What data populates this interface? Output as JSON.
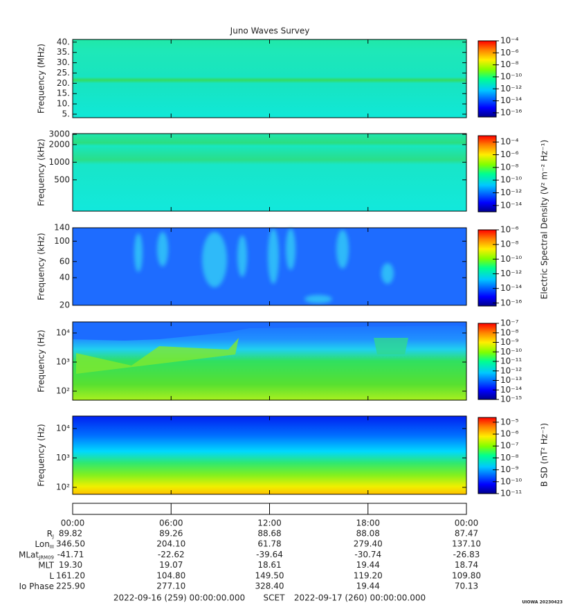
{
  "chart_data": {
    "type": "spectrogram",
    "title": "Juno Waves Survey",
    "colorbar_log": true,
    "xlim": [
      0,
      24
    ],
    "xticks": [
      {
        "value": 0,
        "label": "00:00"
      },
      {
        "value": 6,
        "label": "06:00"
      },
      {
        "value": 12,
        "label": "12:00"
      },
      {
        "value": 18,
        "label": "18:00"
      },
      {
        "value": 24,
        "label": "00:00"
      }
    ],
    "panels": [
      {
        "ylabel": "Frequency (MHz)",
        "log": false,
        "ylim": [
          3.3,
          41.3
        ],
        "yticks": [
          {
            "value": 5,
            "label": "5."
          },
          {
            "value": 10,
            "label": "10."
          },
          {
            "value": 15,
            "label": "15."
          },
          {
            "value": 20,
            "label": "20."
          },
          {
            "value": 25,
            "label": "25."
          },
          {
            "value": 30,
            "label": "30."
          },
          {
            "value": 35,
            "label": "35."
          },
          {
            "value": 40,
            "label": "40."
          }
        ],
        "clim": [
          2e-17,
          0.0001
        ],
        "cticks": [
          {
            "value": 0.0001,
            "label": "10⁻⁴"
          },
          {
            "value": 1e-06,
            "label": "10⁻⁶"
          },
          {
            "value": 1e-08,
            "label": "10⁻⁸"
          },
          {
            "value": 1e-10,
            "label": "10⁻¹⁰"
          },
          {
            "value": 1e-12,
            "label": "10⁻¹²"
          },
          {
            "value": 1e-14,
            "label": "10⁻¹⁴"
          },
          {
            "value": 1e-16,
            "label": "10⁻¹⁶"
          }
        ]
      },
      {
        "ylabel": "Frequency (kHz)",
        "log": true,
        "ylim": [
          146,
          3080
        ],
        "yticks": [
          500,
          1000,
          2000,
          3000
        ],
        "clim": [
          1e-15,
          0.001
        ],
        "cticks": [
          {
            "value": 0.0001,
            "label": "10⁻⁴"
          },
          {
            "value": 1e-06,
            "label": "10⁻⁶"
          },
          {
            "value": 1e-08,
            "label": "10⁻⁸"
          },
          {
            "value": 1e-10,
            "label": "10⁻¹⁰"
          },
          {
            "value": 1e-12,
            "label": "10⁻¹²"
          },
          {
            "value": 1e-14,
            "label": "10⁻¹⁴"
          }
        ]
      },
      {
        "ylabel": "Frequency (kHz)",
        "log": true,
        "ylim": [
          20,
          140
        ],
        "yticks": [
          20,
          40,
          60,
          100,
          140
        ],
        "clim": [
          4e-17,
          1e-06
        ],
        "cticks": [
          {
            "value": 1e-06,
            "label": "10⁻⁶"
          },
          {
            "value": 1e-08,
            "label": "10⁻⁸"
          },
          {
            "value": 1e-10,
            "label": "10⁻¹⁰"
          },
          {
            "value": 1e-12,
            "label": "10⁻¹²"
          },
          {
            "value": 1e-14,
            "label": "10⁻¹⁴"
          },
          {
            "value": 1e-16,
            "label": "10⁻¹⁶"
          }
        ]
      },
      {
        "ylabel": "Frequency (Hz)",
        "log": true,
        "ylim": [
          49,
          24000
        ],
        "yticks": [
          {
            "value": 100,
            "label": "10²"
          },
          {
            "value": 1000,
            "label": "10³"
          },
          {
            "value": 10000,
            "label": "10⁴"
          }
        ],
        "clim": [
          1e-15,
          1e-07
        ],
        "cticks": [
          {
            "value": 1e-07,
            "label": "10⁻⁷"
          },
          {
            "value": 1e-08,
            "label": "10⁻⁸"
          },
          {
            "value": 1e-09,
            "label": "10⁻⁹"
          },
          {
            "value": 1e-10,
            "label": "10⁻¹⁰"
          },
          {
            "value": 1e-11,
            "label": "10⁻¹¹"
          },
          {
            "value": 1e-12,
            "label": "10⁻¹²"
          },
          {
            "value": 1e-13,
            "label": "10⁻¹³"
          },
          {
            "value": 1e-14,
            "label": "10⁻¹⁴"
          },
          {
            "value": 1e-15,
            "label": "10⁻¹⁵"
          }
        ]
      },
      {
        "ylabel": "Frequency (Hz)",
        "log": true,
        "ylim": [
          58,
          26500
        ],
        "yticks": [
          {
            "value": 100,
            "label": "10²"
          },
          {
            "value": 1000,
            "label": "10³"
          },
          {
            "value": 10000,
            "label": "10⁴"
          }
        ],
        "clim": [
          1e-11,
          2.5e-05
        ],
        "cticks": [
          {
            "value": 1e-05,
            "label": "10⁻⁵"
          },
          {
            "value": 1e-06,
            "label": "10⁻⁶"
          },
          {
            "value": 1e-07,
            "label": "10⁻⁷"
          },
          {
            "value": 1e-08,
            "label": "10⁻⁸"
          },
          {
            "value": 1e-09,
            "label": "10⁻⁹"
          },
          {
            "value": 1e-10,
            "label": "10⁻¹⁰"
          },
          {
            "value": 1e-11,
            "label": "10⁻¹¹"
          }
        ]
      }
    ],
    "colorbar_labels": [
      "Electric Spectral Density (V² m⁻² Hz⁻¹)",
      "B SD (nT² Hz⁻¹)"
    ],
    "ephemeris": [
      {
        "label": "R",
        "sub": "J",
        "values": [
          "89.82",
          "89.26",
          "88.68",
          "88.08",
          "87.47"
        ]
      },
      {
        "label": "Lon",
        "sub": "III",
        "values": [
          "346.50",
          "204.10",
          "61.78",
          "279.40",
          "137.10"
        ]
      },
      {
        "label": "MLat",
        "sub": "JRM09",
        "values": [
          "-41.71",
          "-22.62",
          "-39.64",
          "-30.74",
          "-26.83"
        ]
      },
      {
        "label": "MLT",
        "values": [
          "19.30",
          "19.07",
          "18.61",
          "19.44",
          "18.74"
        ]
      },
      {
        "label": "L",
        "values": [
          "161.20",
          "104.80",
          "149.50",
          "119.20",
          "109.80"
        ]
      },
      {
        "label": "Io Phase",
        "values": [
          "225.90",
          "277.10",
          "328.40",
          "19.44",
          "70.13"
        ]
      }
    ],
    "footer": {
      "start": "2022-09-16 (259) 00:00:00.000",
      "frame": "SCET",
      "end": "2022-09-17 (260) 00:00:00.000",
      "credit": "UIOWA 20230423"
    }
  }
}
